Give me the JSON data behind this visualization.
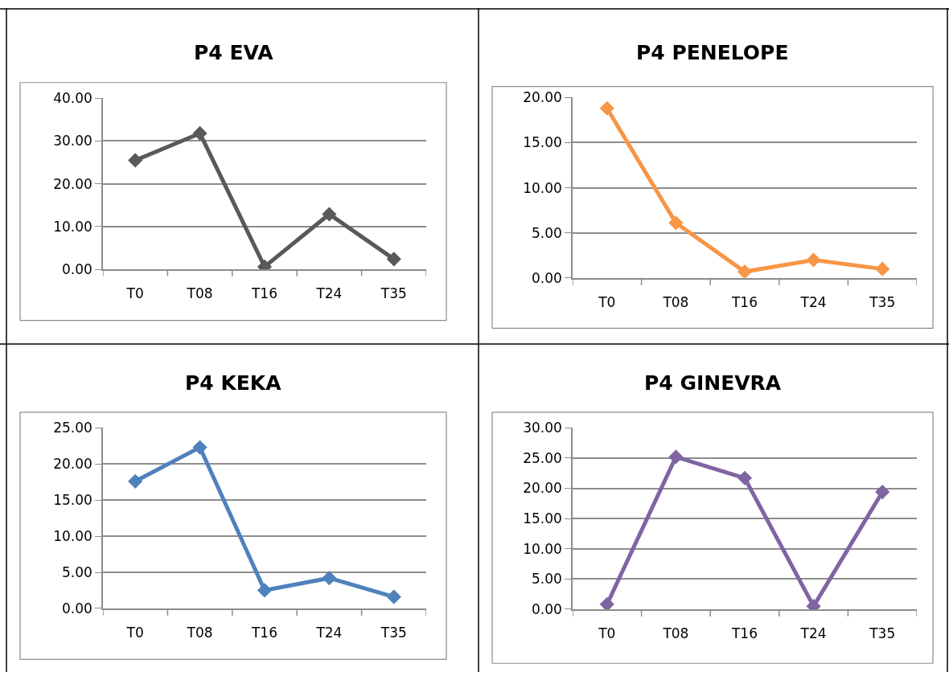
{
  "chart_data": [
    {
      "type": "line",
      "title": "P4 EVA",
      "categories": [
        "T0",
        "T08",
        "T16",
        "T24",
        "T35"
      ],
      "series": [
        {
          "color": "#595959",
          "values": [
            25.5,
            31.8,
            0.6,
            12.9,
            2.4
          ]
        }
      ],
      "ylim": [
        0,
        40
      ],
      "yticks": [
        {
          "value": 0,
          "label": "0.00"
        },
        {
          "value": 10,
          "label": "10.00"
        },
        {
          "value": 20,
          "label": "20.00"
        },
        {
          "value": 30,
          "label": "30.00"
        },
        {
          "value": 40,
          "label": "40.00"
        }
      ],
      "grid": "y",
      "marker": "diamond",
      "line_style": "solid"
    },
    {
      "type": "line",
      "title": "P4 PENELOPE",
      "categories": [
        "T0",
        "T08",
        "T16",
        "T24",
        "T35"
      ],
      "series": [
        {
          "color": "#f79646",
          "values": [
            18.8,
            6.1,
            0.7,
            2.0,
            1.0
          ]
        }
      ],
      "ylim": [
        0,
        20
      ],
      "yticks": [
        {
          "value": 0,
          "label": "0.00"
        },
        {
          "value": 5,
          "label": "5.00"
        },
        {
          "value": 10,
          "label": "10.00"
        },
        {
          "value": 15,
          "label": "15.00"
        },
        {
          "value": 20,
          "label": "20.00"
        }
      ],
      "grid": "y",
      "marker": "diamond",
      "line_style": "solid"
    },
    {
      "type": "line",
      "title": "P4 KEKA",
      "categories": [
        "T0",
        "T08",
        "T16",
        "T24",
        "T35"
      ],
      "series": [
        {
          "color": "#4f81bd",
          "values": [
            17.6,
            22.3,
            2.5,
            4.2,
            1.6
          ]
        }
      ],
      "ylim": [
        0,
        25
      ],
      "yticks": [
        {
          "value": 0,
          "label": "0.00"
        },
        {
          "value": 5,
          "label": "5.00"
        },
        {
          "value": 10,
          "label": "10.00"
        },
        {
          "value": 15,
          "label": "15.00"
        },
        {
          "value": 20,
          "label": "20.00"
        },
        {
          "value": 25,
          "label": "25.00"
        }
      ],
      "grid": "y",
      "marker": "diamond",
      "line_style": "solid"
    },
    {
      "type": "line",
      "title": "P4 GINEVRA",
      "categories": [
        "T0",
        "T08",
        "T16",
        "T24",
        "T35"
      ],
      "series": [
        {
          "color": "#8064a2",
          "values": [
            0.8,
            25.2,
            21.7,
            0.5,
            19.4
          ]
        }
      ],
      "ylim": [
        0,
        30
      ],
      "yticks": [
        {
          "value": 0,
          "label": "0.00"
        },
        {
          "value": 5,
          "label": "5.00"
        },
        {
          "value": 10,
          "label": "10.00"
        },
        {
          "value": 15,
          "label": "15.00"
        },
        {
          "value": 20,
          "label": "20.00"
        },
        {
          "value": 25,
          "label": "25.00"
        },
        {
          "value": 30,
          "label": "30.00"
        }
      ],
      "grid": "y",
      "marker": "diamond",
      "line_style": "solid"
    }
  ]
}
